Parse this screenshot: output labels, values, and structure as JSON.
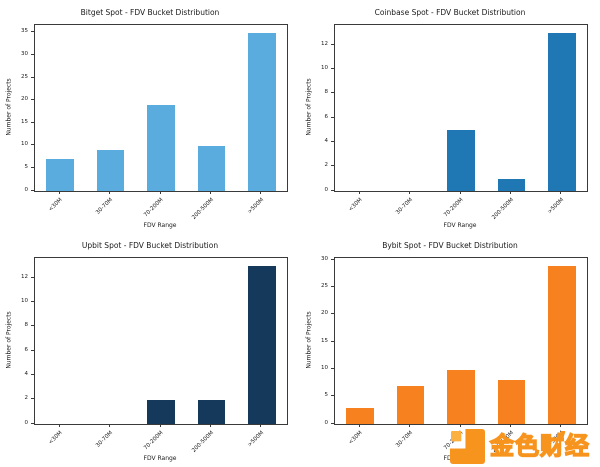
{
  "chart_data": [
    {
      "type": "bar",
      "title": "Bitget Spot - FDV Bucket Distribution",
      "categories": [
        "<30M",
        "30-70M",
        "70-200M",
        "200-500M",
        ">500M"
      ],
      "values": [
        7,
        9,
        19,
        10,
        35
      ],
      "xlabel": "FDV Range",
      "ylabel": "Number of Projects",
      "yticks": [
        0,
        5,
        10,
        15,
        20,
        25,
        30,
        35
      ],
      "ylim": [
        0,
        36.75
      ],
      "bar_color": "#5aabde",
      "grid": false,
      "legend": "none"
    },
    {
      "type": "bar",
      "title": "Coinbase Spot - FDV Bucket Distribution",
      "categories": [
        "<30M",
        "30-70M",
        "70-200M",
        "200-500M",
        ">500M"
      ],
      "values": [
        0,
        0,
        5,
        1,
        13
      ],
      "xlabel": "FDV Range",
      "ylabel": "Number of Projects",
      "yticks": [
        0,
        2,
        4,
        6,
        8,
        10,
        12
      ],
      "ylim": [
        0,
        13.65
      ],
      "bar_color": "#1f77b4",
      "grid": false,
      "legend": "none"
    },
    {
      "type": "bar",
      "title": "Upbit Spot - FDV Bucket Distribution",
      "categories": [
        "<30M",
        "30-70M",
        "70-200M",
        "200-500M",
        ">500M"
      ],
      "values": [
        0,
        0,
        2,
        2,
        13
      ],
      "xlabel": "FDV Range",
      "ylabel": "Number of Projects",
      "yticks": [
        0,
        2,
        4,
        6,
        8,
        10,
        12
      ],
      "ylim": [
        0,
        13.65
      ],
      "bar_color": "#15395b",
      "grid": false,
      "legend": "none"
    },
    {
      "type": "bar",
      "title": "Bybit Spot - FDV Bucket Distribution",
      "categories": [
        "<30M",
        "30-70M",
        "70-200M",
        "200-500M",
        ">500M"
      ],
      "values": [
        3,
        7,
        10,
        8,
        29
      ],
      "xlabel": "FDV Range",
      "ylabel": "Number of Projects",
      "yticks": [
        0,
        5,
        10,
        15,
        20,
        25,
        30
      ],
      "ylim": [
        0,
        30.45
      ],
      "bar_color": "#f8811f",
      "grid": false,
      "legend": "none"
    }
  ],
  "watermark": {
    "text": "金色财经",
    "text_color": "#ffffff",
    "outline_color": "#f7941d",
    "logo_color": "#f7941d",
    "logo_accent_color": "#fbb040"
  }
}
